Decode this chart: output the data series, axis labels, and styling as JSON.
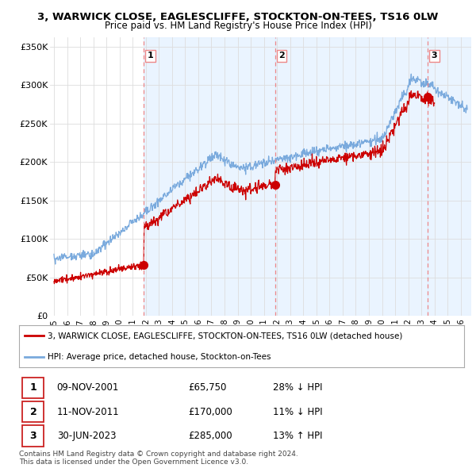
{
  "title_line1": "3, WARWICK CLOSE, EAGLESCLIFFE, STOCKTON-ON-TEES, TS16 0LW",
  "title_line2": "Price paid vs. HM Land Registry's House Price Index (HPI)",
  "ylabel_ticks": [
    "£0",
    "£50K",
    "£100K",
    "£150K",
    "£200K",
    "£250K",
    "£300K",
    "£350K"
  ],
  "ytick_values": [
    0,
    50000,
    100000,
    150000,
    200000,
    250000,
    300000,
    350000
  ],
  "ylim": [
    0,
    362000
  ],
  "xlim_start": 1994.7,
  "xlim_end": 2026.8,
  "xtick_years": [
    1995,
    1996,
    1997,
    1998,
    1999,
    2000,
    2001,
    2002,
    2003,
    2004,
    2005,
    2006,
    2007,
    2008,
    2009,
    2010,
    2011,
    2012,
    2013,
    2014,
    2015,
    2016,
    2017,
    2018,
    2019,
    2020,
    2021,
    2022,
    2023,
    2024,
    2025,
    2026
  ],
  "sale_dates": [
    2001.86,
    2011.86,
    2023.5
  ],
  "sale_prices": [
    65750,
    170000,
    285000
  ],
  "sale_labels": [
    "1",
    "2",
    "3"
  ],
  "vline_color": "#ee8888",
  "sale_point_color": "#cc0000",
  "hpi_line_color": "#7aaadd",
  "price_line_color": "#cc0000",
  "shade_color": "#ddeeff",
  "legend_red_label": "3, WARWICK CLOSE, EAGLESCLIFFE, STOCKTON-ON-TEES, TS16 0LW (detached house)",
  "legend_blue_label": "HPI: Average price, detached house, Stockton-on-Tees",
  "table_rows": [
    [
      "1",
      "09-NOV-2001",
      "£65,750",
      "28% ↓ HPI"
    ],
    [
      "2",
      "11-NOV-2011",
      "£170,000",
      "11% ↓ HPI"
    ],
    [
      "3",
      "30-JUN-2023",
      "£285,000",
      "13% ↑ HPI"
    ]
  ],
  "footnote": "Contains HM Land Registry data © Crown copyright and database right 2024.\nThis data is licensed under the Open Government Licence v3.0.",
  "background_color": "#ffffff",
  "grid_color": "#dddddd"
}
